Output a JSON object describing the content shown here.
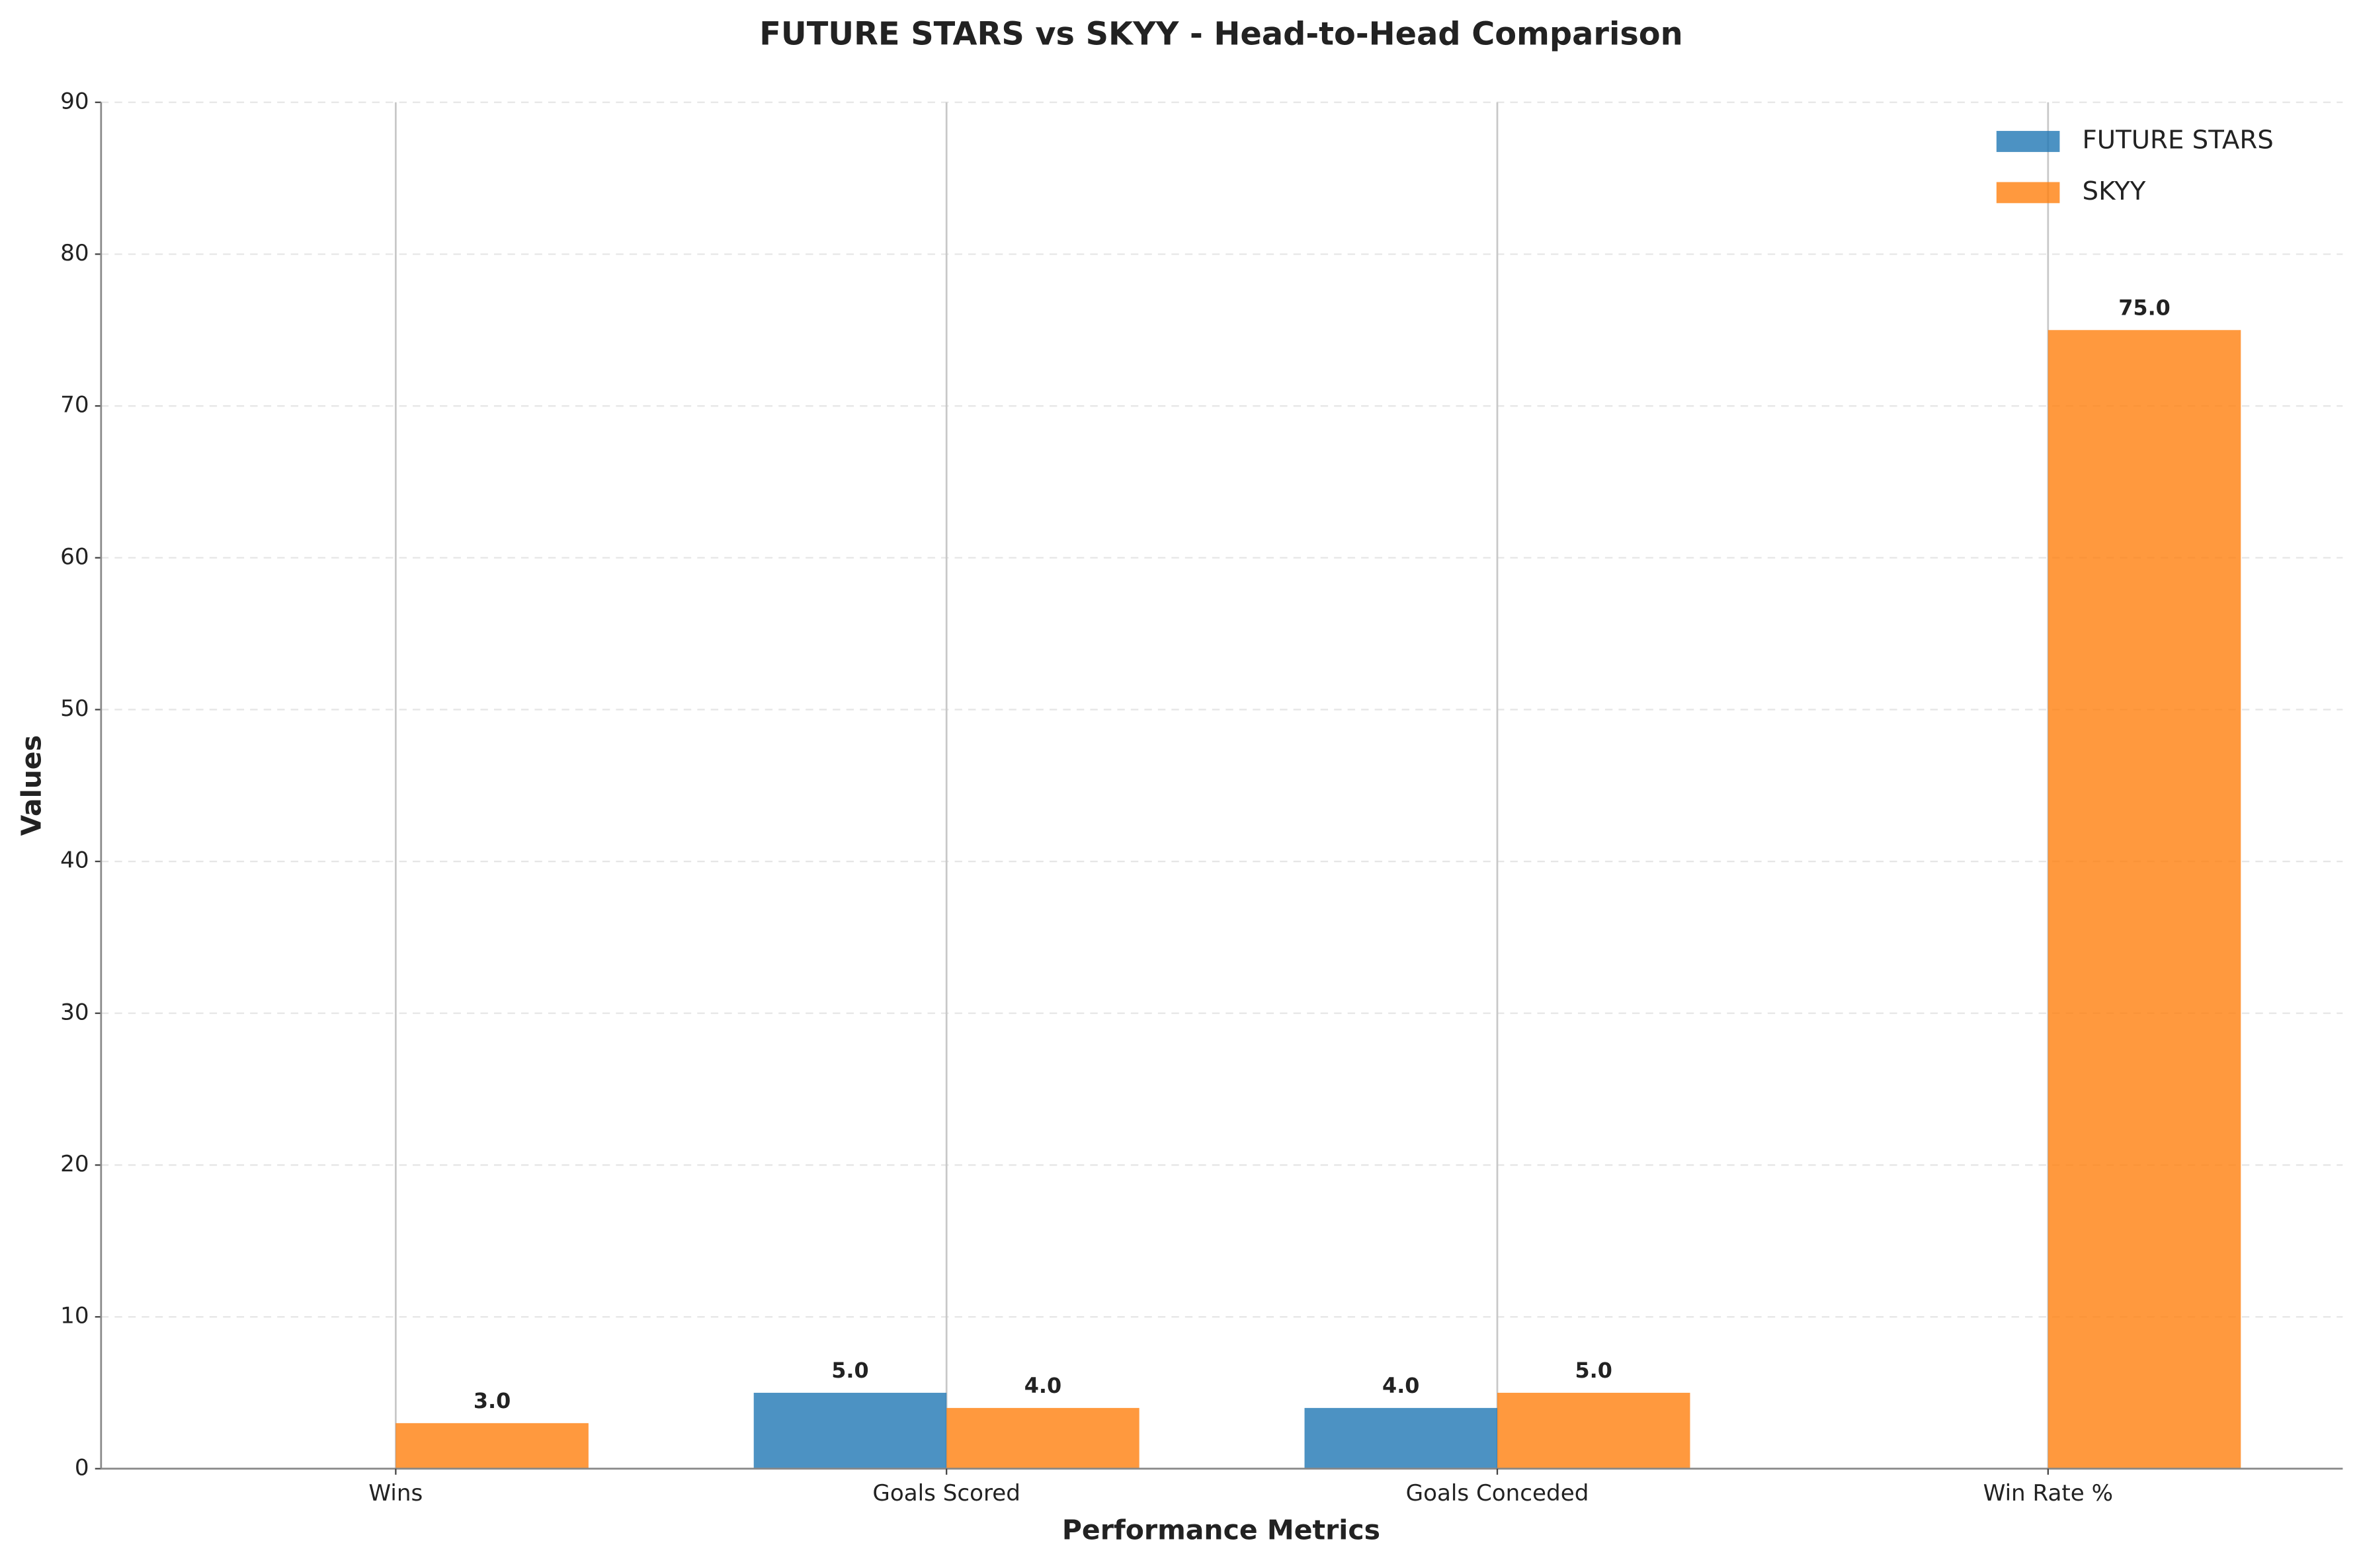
{
  "chart_data": {
    "type": "bar",
    "title": "FUTURE STARS vs SKYY - Head-to-Head Comparison",
    "x_label": "Performance Metrics",
    "y_label": "Values",
    "categories": [
      "Wins",
      "Goals Scored",
      "Goals Conceded",
      "Win Rate %"
    ],
    "series": [
      {
        "name": "FUTURE STARS",
        "color": "#1f77b4",
        "values": [
          0,
          5,
          4,
          0
        ],
        "value_labels": [
          null,
          "5.0",
          "4.0",
          null
        ]
      },
      {
        "name": "SKYY",
        "color": "#ff7f0e",
        "values": [
          3,
          4,
          5,
          75
        ],
        "value_labels": [
          "3.0",
          "4.0",
          "5.0",
          "75.0"
        ]
      }
    ],
    "ylim": [
      0,
      90
    ],
    "yticks": [
      0,
      10,
      20,
      30,
      40,
      50,
      60,
      70,
      80,
      90
    ],
    "grid": true,
    "legend": "upper right"
  }
}
